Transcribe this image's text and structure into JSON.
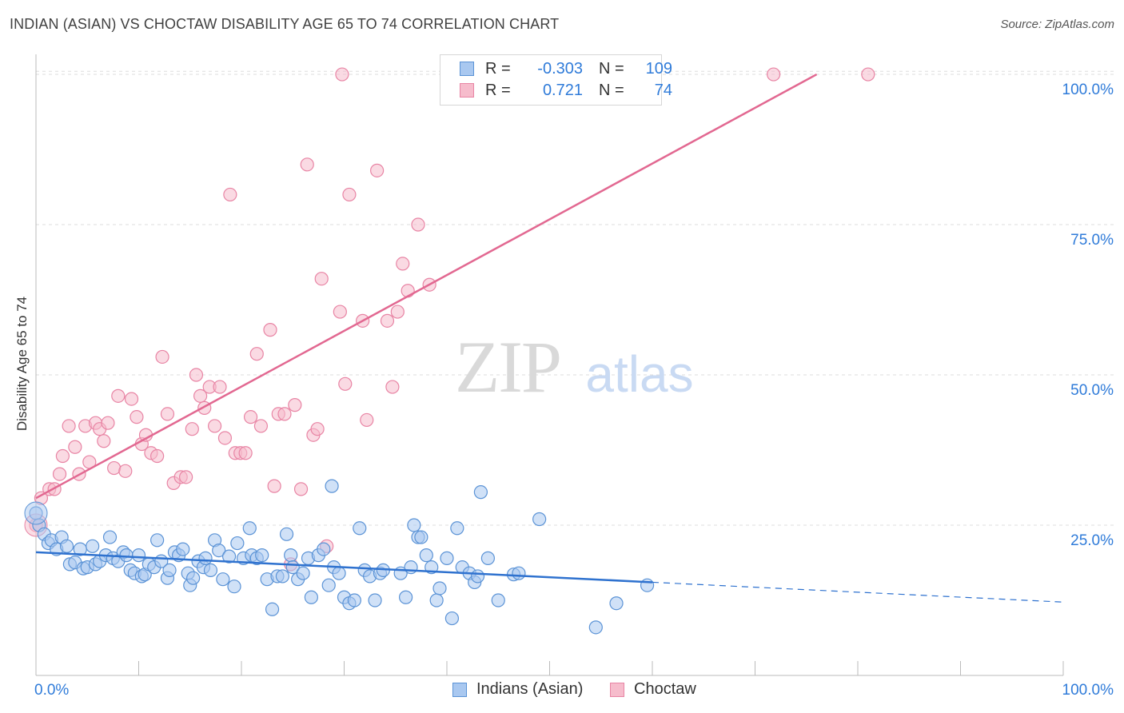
{
  "header": {
    "title": "INDIAN (ASIAN) VS CHOCTAW DISABILITY AGE 65 TO 74 CORRELATION CHART",
    "source": "Source: ZipAtlas.com"
  },
  "legend": {
    "rows": [
      {
        "r_label": "R =",
        "r_value": "-0.303",
        "n_label": "N =",
        "n_value": "109"
      },
      {
        "r_label": "R =",
        "r_value": "0.721",
        "n_label": "N =",
        "n_value": "74"
      }
    ]
  },
  "watermark": {
    "zip": "ZIP",
    "atlas": "atlas"
  },
  "colors": {
    "blue_fill": "#a9c8f0",
    "blue_stroke": "#5b93d6",
    "blue_line": "#2f72cf",
    "pink_fill": "#f6bccc",
    "pink_stroke": "#e884a4",
    "pink_line": "#e26891",
    "tick_text": "#2f7bd9",
    "grid": "#dddddd"
  },
  "chart_data": {
    "type": "scatter",
    "title": "INDIAN (ASIAN) VS CHOCTAW DISABILITY AGE 65 TO 74 CORRELATION CHART",
    "xlabel": "",
    "ylabel": "Disability Age 65 to 74",
    "xlim": [
      0,
      100
    ],
    "ylim": [
      0,
      102
    ],
    "x_tick_labels": [
      "0.0%",
      "100.0%"
    ],
    "y_ticks": [
      25,
      50,
      75,
      100
    ],
    "y_tick_labels": [
      "25.0%",
      "50.0%",
      "75.0%",
      "100.0%"
    ],
    "grid": true,
    "legend_position": "bottom",
    "series": [
      {
        "name": "Indians (Asian)",
        "color": "#a9c8f0",
        "trend": {
          "x": [
            0,
            60
          ],
          "y": [
            20.5,
            15.5
          ],
          "dashed_extension": {
            "x": [
              60,
              100
            ],
            "y": [
              15.5,
              12.2
            ]
          }
        },
        "points": [
          [
            0,
            27
          ],
          [
            0.3,
            25
          ],
          [
            0.8,
            23.5
          ],
          [
            1.2,
            22
          ],
          [
            1.5,
            22.5
          ],
          [
            2,
            21
          ],
          [
            2.5,
            23
          ],
          [
            3,
            21.5
          ],
          [
            3.3,
            18.5
          ],
          [
            3.8,
            18.8
          ],
          [
            4.3,
            21
          ],
          [
            4.6,
            17.8
          ],
          [
            5,
            18
          ],
          [
            5.5,
            21.5
          ],
          [
            5.8,
            18.5
          ],
          [
            6.2,
            19
          ],
          [
            6.8,
            20
          ],
          [
            7.2,
            23
          ],
          [
            7.5,
            19.5
          ],
          [
            8,
            19
          ],
          [
            8.5,
            20.5
          ],
          [
            8.8,
            20
          ],
          [
            9.2,
            17.5
          ],
          [
            9.6,
            17
          ],
          [
            10,
            20
          ],
          [
            10.3,
            16.5
          ],
          [
            10.6,
            16.8
          ],
          [
            11,
            18.5
          ],
          [
            11.5,
            18
          ],
          [
            11.8,
            22.5
          ],
          [
            12.2,
            19
          ],
          [
            12.8,
            16.2
          ],
          [
            13,
            17.5
          ],
          [
            13.5,
            20.5
          ],
          [
            13.9,
            20
          ],
          [
            14.3,
            21
          ],
          [
            14.8,
            17
          ],
          [
            15,
            15
          ],
          [
            15.3,
            16.2
          ],
          [
            15.8,
            19
          ],
          [
            16.3,
            18
          ],
          [
            16.5,
            19.5
          ],
          [
            17,
            17.5
          ],
          [
            17.4,
            22.5
          ],
          [
            17.8,
            20.8
          ],
          [
            18.2,
            16
          ],
          [
            18.8,
            19.8
          ],
          [
            19.3,
            14.8
          ],
          [
            19.6,
            22
          ],
          [
            20.2,
            19.5
          ],
          [
            20.8,
            24.5
          ],
          [
            21,
            20
          ],
          [
            21.5,
            19.5
          ],
          [
            22,
            20
          ],
          [
            22.5,
            16
          ],
          [
            23,
            11
          ],
          [
            23.5,
            16.5
          ],
          [
            24,
            16.5
          ],
          [
            24.4,
            23.5
          ],
          [
            24.8,
            20
          ],
          [
            25,
            18
          ],
          [
            25.5,
            16
          ],
          [
            26,
            17
          ],
          [
            26.5,
            19.5
          ],
          [
            26.8,
            13
          ],
          [
            27.5,
            20
          ],
          [
            28,
            21
          ],
          [
            28.5,
            15
          ],
          [
            28.8,
            31.5
          ],
          [
            29,
            18
          ],
          [
            29.5,
            17
          ],
          [
            30,
            13
          ],
          [
            30.5,
            12
          ],
          [
            31,
            12.5
          ],
          [
            31.5,
            24.5
          ],
          [
            32,
            17.5
          ],
          [
            32.5,
            16.5
          ],
          [
            33,
            12.5
          ],
          [
            33.5,
            17
          ],
          [
            33.8,
            17.5
          ],
          [
            35.5,
            17
          ],
          [
            36,
            13
          ],
          [
            36.5,
            18
          ],
          [
            36.8,
            25
          ],
          [
            37.2,
            23
          ],
          [
            37.5,
            23
          ],
          [
            38,
            20
          ],
          [
            38.5,
            18
          ],
          [
            39,
            12.5
          ],
          [
            39.3,
            14.5
          ],
          [
            40,
            19.5
          ],
          [
            40.5,
            9.5
          ],
          [
            41,
            24.5
          ],
          [
            41.5,
            18
          ],
          [
            42.2,
            17
          ],
          [
            42.7,
            15.5
          ],
          [
            43,
            16.5
          ],
          [
            43.3,
            30.5
          ],
          [
            44,
            19.5
          ],
          [
            45,
            12.5
          ],
          [
            46.5,
            16.8
          ],
          [
            47,
            17
          ],
          [
            49,
            26
          ],
          [
            54.5,
            8
          ],
          [
            56.5,
            12
          ],
          [
            59.5,
            15
          ]
        ]
      },
      {
        "name": "Choctaw",
        "color": "#f6bccc",
        "trend": {
          "x": [
            0,
            76
          ],
          "y": [
            29.5,
            100
          ]
        },
        "points": [
          [
            0,
            25
          ],
          [
            0.5,
            29.5
          ],
          [
            1.3,
            31
          ],
          [
            1.8,
            31
          ],
          [
            2.3,
            33.5
          ],
          [
            2.6,
            36.5
          ],
          [
            3.2,
            41.5
          ],
          [
            3.8,
            38
          ],
          [
            4.2,
            33.5
          ],
          [
            4.8,
            41.5
          ],
          [
            5.2,
            35.5
          ],
          [
            5.8,
            42
          ],
          [
            6.2,
            41
          ],
          [
            6.6,
            39
          ],
          [
            7,
            42
          ],
          [
            7.6,
            34.5
          ],
          [
            8,
            46.5
          ],
          [
            8.7,
            34
          ],
          [
            9.3,
            46
          ],
          [
            9.8,
            43
          ],
          [
            10.3,
            38.5
          ],
          [
            10.7,
            40
          ],
          [
            11.2,
            37
          ],
          [
            11.8,
            36.5
          ],
          [
            12.3,
            53
          ],
          [
            12.8,
            43.5
          ],
          [
            13.4,
            32
          ],
          [
            14.1,
            33
          ],
          [
            14.6,
            33
          ],
          [
            15.2,
            41
          ],
          [
            15.6,
            50
          ],
          [
            16,
            46.5
          ],
          [
            16.4,
            44.5
          ],
          [
            16.9,
            48
          ],
          [
            17.4,
            41.5
          ],
          [
            17.9,
            48
          ],
          [
            18.4,
            39.5
          ],
          [
            18.9,
            80
          ],
          [
            19.4,
            37
          ],
          [
            19.9,
            37
          ],
          [
            20.4,
            37
          ],
          [
            20.9,
            43
          ],
          [
            21.5,
            53.5
          ],
          [
            21.9,
            41.5
          ],
          [
            22.8,
            57.5
          ],
          [
            23.2,
            31.5
          ],
          [
            23.6,
            43.5
          ],
          [
            24.2,
            43.5
          ],
          [
            24.8,
            18.5
          ],
          [
            25.2,
            45
          ],
          [
            25.8,
            31
          ],
          [
            26.4,
            85
          ],
          [
            27,
            40
          ],
          [
            27.4,
            41
          ],
          [
            27.8,
            66
          ],
          [
            28.3,
            21.5
          ],
          [
            29.6,
            60.5
          ],
          [
            30.1,
            48.5
          ],
          [
            30.5,
            80
          ],
          [
            31.8,
            59
          ],
          [
            32.2,
            42.5
          ],
          [
            33.2,
            84
          ],
          [
            34.2,
            59
          ],
          [
            34.7,
            48
          ],
          [
            35.2,
            60.5
          ],
          [
            35.7,
            68.5
          ],
          [
            36.2,
            64
          ],
          [
            37.2,
            75
          ],
          [
            38.3,
            65
          ],
          [
            29.8,
            100
          ],
          [
            71.8,
            100
          ],
          [
            81,
            100
          ]
        ]
      }
    ]
  },
  "bottom_legend": {
    "items": [
      {
        "label": "Indians (Asian)"
      },
      {
        "label": "Choctaw"
      }
    ]
  }
}
